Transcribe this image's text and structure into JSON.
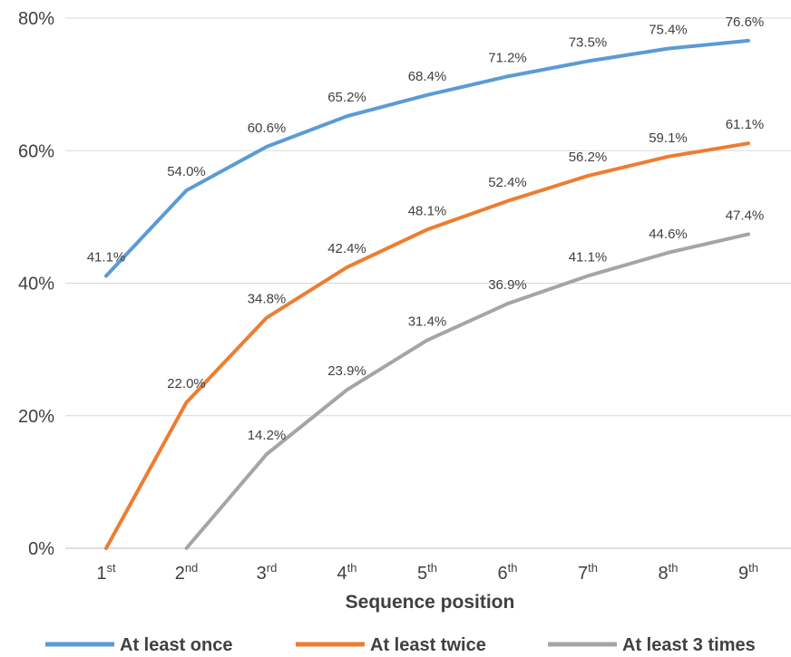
{
  "chart_data": {
    "type": "line",
    "title": "",
    "xlabel": "Sequence position",
    "ylabel": "",
    "categories": [
      {
        "num": "1",
        "suffix": "st"
      },
      {
        "num": "2",
        "suffix": "nd"
      },
      {
        "num": "3",
        "suffix": "rd"
      },
      {
        "num": "4",
        "suffix": "th"
      },
      {
        "num": "5",
        "suffix": "th"
      },
      {
        "num": "6",
        "suffix": "th"
      },
      {
        "num": "7",
        "suffix": "th"
      },
      {
        "num": "8",
        "suffix": "th"
      },
      {
        "num": "9",
        "suffix": "th"
      }
    ],
    "ylim": [
      0,
      80
    ],
    "yticks": [
      0,
      20,
      40,
      60,
      80
    ],
    "y_unit": "%",
    "grid": "horizontal",
    "legend_position": "bottom",
    "series": [
      {
        "name": "At least once",
        "color": "#5B9BD5",
        "values": [
          41.1,
          54.0,
          60.6,
          65.2,
          68.4,
          71.2,
          73.5,
          75.4,
          76.6
        ],
        "labels": [
          "41.1%",
          "54.0%",
          "60.6%",
          "65.2%",
          "68.4%",
          "71.2%",
          "73.5%",
          "75.4%",
          "76.6%"
        ]
      },
      {
        "name": "At least twice",
        "color": "#ED7D31",
        "values": [
          0,
          22.0,
          34.8,
          42.4,
          48.1,
          52.4,
          56.2,
          59.1,
          61.1
        ],
        "labels": [
          null,
          "22.0%",
          "34.8%",
          "42.4%",
          "48.1%",
          "52.4%",
          "56.2%",
          "59.1%",
          "61.1%"
        ]
      },
      {
        "name": "At least 3 times",
        "color": "#A5A5A5",
        "values": [
          null,
          0,
          14.2,
          23.9,
          31.4,
          36.9,
          41.1,
          44.6,
          47.4
        ],
        "labels": [
          null,
          null,
          "14.2%",
          "23.9%",
          "31.4%",
          "36.9%",
          "41.1%",
          "44.6%",
          "47.4%"
        ]
      }
    ]
  }
}
